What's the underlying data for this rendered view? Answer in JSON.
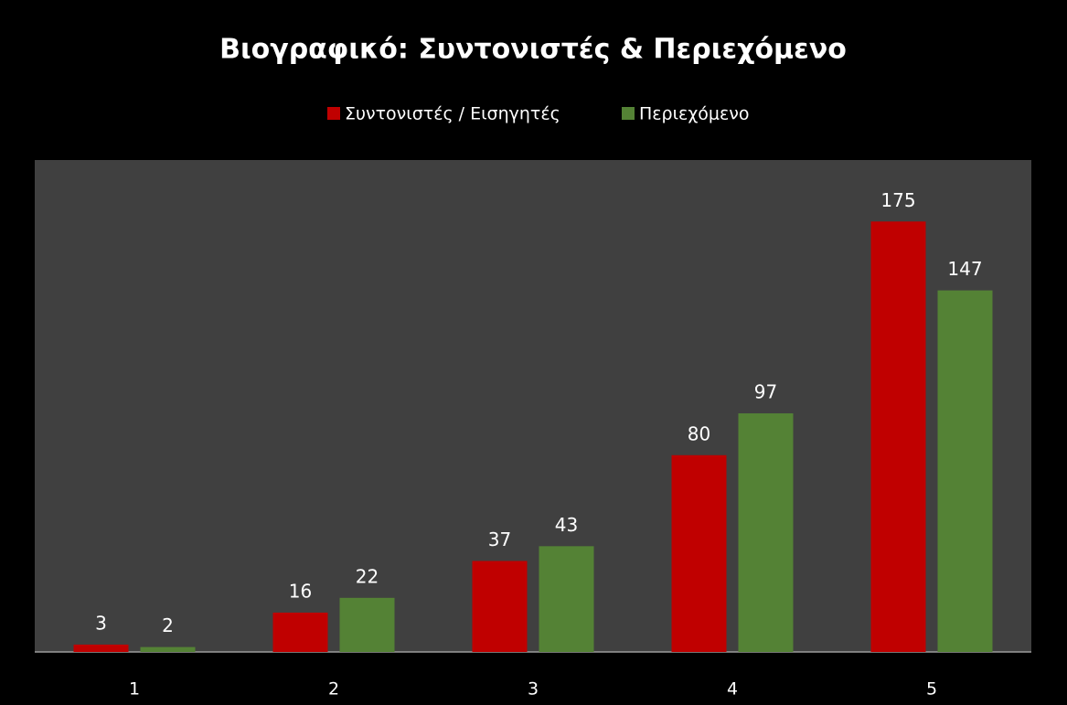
{
  "chart_data": {
    "type": "bar",
    "title": "Βιογραφικό: Συντονιστές & Περιεχόμενο",
    "categories": [
      "1",
      "2",
      "3",
      "4",
      "5"
    ],
    "series": [
      {
        "name": "Συντονιστές / Εισηγητές",
        "color": "#c00000",
        "values": [
          3,
          16,
          37,
          80,
          175
        ]
      },
      {
        "name": "Περιεχόμενο",
        "color": "#548235",
        "values": [
          2,
          22,
          43,
          97,
          147
        ]
      }
    ],
    "ylim": [
      0,
      200
    ],
    "legend": "top"
  }
}
